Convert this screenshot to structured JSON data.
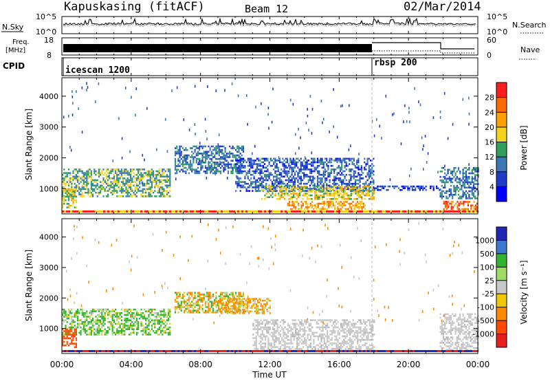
{
  "header": {
    "station": "Kapuskasing (fitACF)",
    "beam": "Beam 12",
    "date": "02/Mar/2014"
  },
  "nsky_panel": {
    "left_label": "N.Sky",
    "left_ticks": [
      "10^5",
      "10^0"
    ],
    "right_label": "N.Search",
    "right_ticks": [
      "10^5",
      "10^0"
    ]
  },
  "freq_panel": {
    "left_label_top": "Freq.",
    "left_label_unit": "[MHz]",
    "left_ticks": [
      "18",
      "8"
    ],
    "right_label": "Nave",
    "right_ticks": [
      "60",
      "0"
    ]
  },
  "cpid_panel": {
    "label": "CPID",
    "segments": [
      {
        "name": "icescan 1200",
        "start_hour": 0,
        "end_hour": 18.1
      },
      {
        "name": "rbsp 200",
        "start_hour": 18.1,
        "end_hour": 24
      }
    ]
  },
  "x_axis": {
    "label": "Time UT",
    "ticks": [
      "00:00",
      "04:00",
      "08:00",
      "12:00",
      "16:00",
      "20:00",
      "00:00"
    ]
  },
  "y_axis": {
    "label": "Slant Range [km]",
    "ticks": [
      "1000",
      "2000",
      "3000",
      "4000"
    ]
  },
  "power_colorbar": {
    "label": "Power [dB]",
    "ticks": [
      "28",
      "24",
      "20",
      "16",
      "12",
      "8",
      "4"
    ],
    "colors": [
      "#ff1e1e",
      "#ff6a00",
      "#ffa000",
      "#f5d21e",
      "#2ea05a",
      "#3c78b4",
      "#1e3cc8",
      "#0000ff"
    ]
  },
  "velocity_colorbar": {
    "label": "Velocity",
    "unit": "[m s⁻¹]",
    "ticks": [
      "1000",
      "500",
      "100",
      "25",
      "-25",
      "-100",
      "-500",
      "-1000"
    ],
    "colors": [
      "#1e28b4",
      "#3c78d2",
      "#32b432",
      "#a0dc64",
      "#c8c8c8",
      "#f0c800",
      "#ff8c00",
      "#ff4b00",
      "#e61e1e"
    ]
  },
  "chart_data": [
    {
      "type": "heatmap",
      "title": "Power",
      "xlabel": "Time UT",
      "ylabel": "Slant Range [km]",
      "xlim_hours": [
        0,
        24
      ],
      "ylim_km": [
        180,
        4600
      ],
      "colorbar": "Power [dB]",
      "regions": [
        {
          "t0": 0.0,
          "t1": 6.2,
          "r0": 750,
          "r1": 1650,
          "value_db": 14
        },
        {
          "t0": 0.0,
          "t1": 0.8,
          "r0": 400,
          "r1": 1000,
          "value_db": 18
        },
        {
          "t0": 6.5,
          "t1": 10.5,
          "r0": 1500,
          "r1": 2400,
          "value_db": 10
        },
        {
          "t0": 10.0,
          "t1": 18.0,
          "r0": 950,
          "r1": 2000,
          "value_db": 8
        },
        {
          "t0": 11.5,
          "t1": 18.0,
          "r0": 650,
          "r1": 1100,
          "value_db": 18
        },
        {
          "t0": 13.0,
          "t1": 17.5,
          "r0": 350,
          "r1": 600,
          "value_db": 22
        },
        {
          "t0": 18.0,
          "t1": 21.8,
          "r0": 950,
          "r1": 1100,
          "value_db": 6
        },
        {
          "t0": 21.8,
          "t1": 24.0,
          "r0": 700,
          "r1": 1700,
          "value_db": 10
        },
        {
          "t0": 22.0,
          "t1": 24.0,
          "r0": 300,
          "r1": 600,
          "value_db": 26
        }
      ]
    },
    {
      "type": "heatmap",
      "title": "Velocity",
      "xlabel": "Time UT",
      "ylabel": "Slant Range [km]",
      "xlim_hours": [
        0,
        24
      ],
      "ylim_km": [
        180,
        4600
      ],
      "colorbar": "Velocity [m s⁻¹]",
      "regions": [
        {
          "t0": 0.0,
          "t1": 6.2,
          "r0": 800,
          "r1": 1650,
          "value_ms": 100
        },
        {
          "t0": 0.0,
          "t1": 0.8,
          "r0": 400,
          "r1": 1000,
          "value_ms": -500
        },
        {
          "t0": 6.5,
          "t1": 10.5,
          "r0": 1500,
          "r1": 2200,
          "value_ms": -25
        },
        {
          "t0": 9.0,
          "t1": 12.0,
          "r0": 1500,
          "r1": 2000,
          "value_ms": -100
        },
        {
          "t0": 11.0,
          "t1": 18.0,
          "r0": 300,
          "r1": 1300,
          "value_ms": 0
        },
        {
          "t0": 21.8,
          "t1": 24.0,
          "r0": 300,
          "r1": 1500,
          "value_ms": 0
        }
      ]
    }
  ]
}
